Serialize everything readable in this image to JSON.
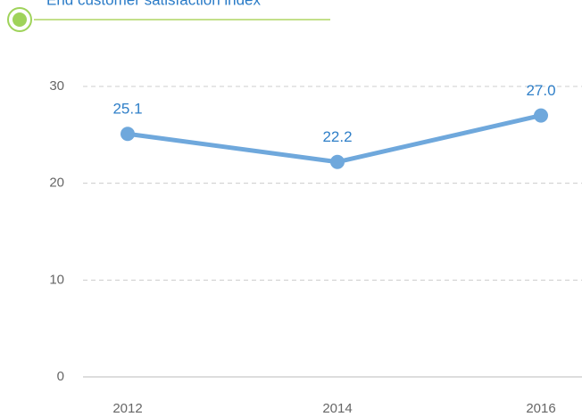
{
  "chart_data": {
    "type": "line",
    "title": "End customer satisfaction index",
    "categories": [
      "2012",
      "2014",
      "2016"
    ],
    "series": [
      {
        "name": null,
        "color": "#6fa8dc",
        "values": [
          25.1,
          22.2,
          27.0
        ],
        "value_labels": [
          "25.1",
          "22.2",
          "27.0"
        ]
      }
    ],
    "ylim": [
      0,
      30
    ],
    "yticks": [
      0,
      10,
      20,
      30
    ],
    "grid": true
  }
}
